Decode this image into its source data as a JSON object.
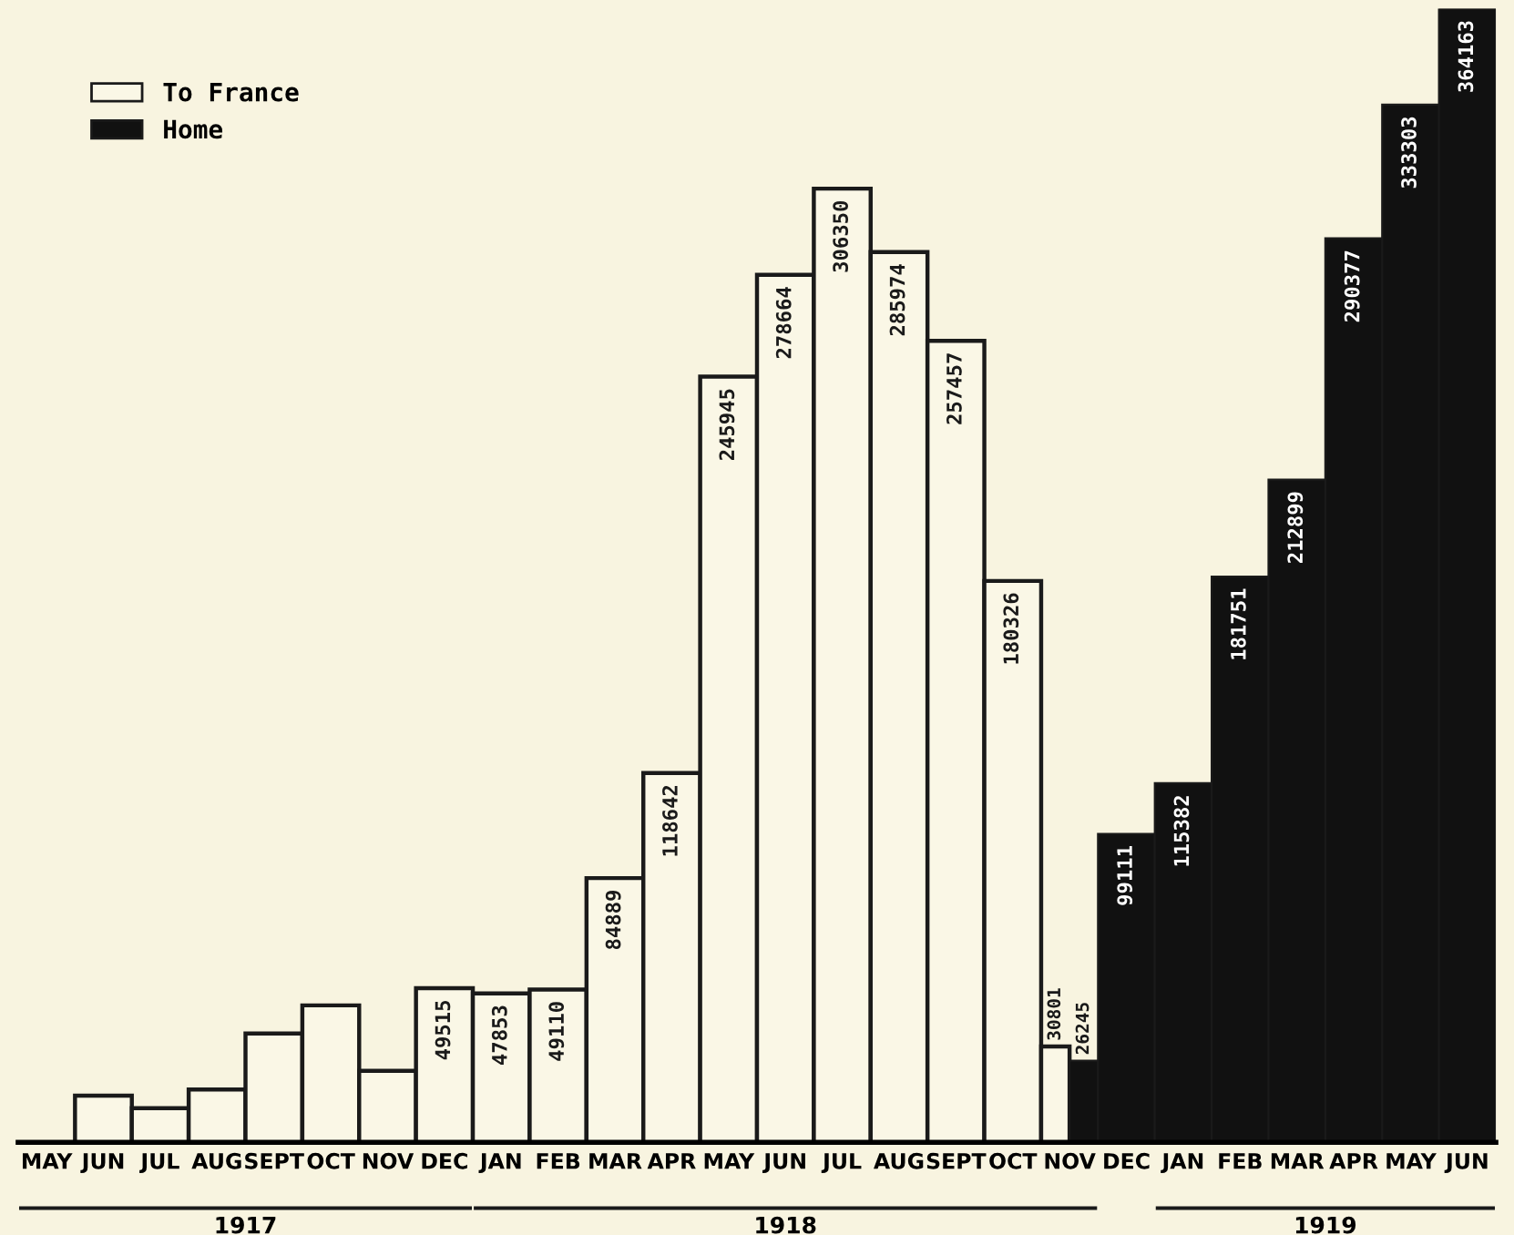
{
  "chart_data": {
    "type": "bar",
    "categories": [
      "MAY",
      "JUN",
      "JUL",
      "AUG",
      "SEPT",
      "OCT",
      "NOV",
      "DEC",
      "JAN",
      "FEB",
      "MAR",
      "APR",
      "MAY",
      "JUN",
      "JUL",
      "AUG",
      "SEPT",
      "OCT",
      "NOV",
      "DEC",
      "JAN",
      "FEB",
      "MAR",
      "APR",
      "MAY",
      "JUN"
    ],
    "series": [
      {
        "name": "To France",
        "color": "#faf7e6",
        "values": [
          null,
          15000,
          11000,
          17000,
          35000,
          44000,
          23000,
          49515,
          47853,
          49110,
          84889,
          118642,
          245945,
          278664,
          306350,
          285974,
          257457,
          180326,
          30801,
          null,
          null,
          null,
          null,
          null,
          null,
          null
        ],
        "value_labels": [
          null,
          null,
          null,
          null,
          null,
          null,
          null,
          "49515",
          "47853",
          "49110",
          "84889",
          "118642",
          "245945",
          "278664",
          "306350",
          "285974",
          "257457",
          "180326",
          "30801",
          null,
          null,
          null,
          null,
          null,
          null,
          null
        ]
      },
      {
        "name": "Home",
        "color": "#111111",
        "values": [
          null,
          null,
          null,
          null,
          null,
          null,
          null,
          null,
          null,
          null,
          null,
          null,
          null,
          null,
          null,
          null,
          null,
          null,
          26245,
          99111,
          115382,
          181751,
          212899,
          290377,
          333303,
          364163
        ],
        "value_labels": [
          null,
          null,
          null,
          null,
          null,
          null,
          null,
          null,
          null,
          null,
          null,
          null,
          null,
          null,
          null,
          null,
          null,
          null,
          "26245",
          "99111",
          "115382",
          "181751",
          "212899",
          "290377",
          "333303",
          "364163"
        ]
      }
    ],
    "annotations": [
      "1917",
      "1918",
      "1919"
    ],
    "legend": "top left"
  }
}
